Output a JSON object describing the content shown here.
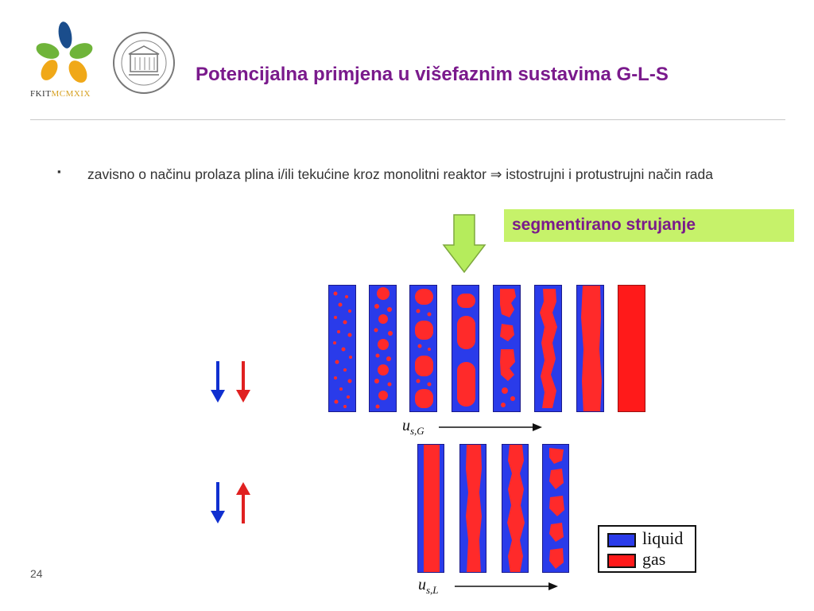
{
  "header": {
    "title": "Potencijalna primjena u višefaznim sustavima G-L-S",
    "logo_text": "FKIT",
    "logo_roman": "MCMXIX"
  },
  "bullet": {
    "marker": "▪",
    "text": "zavisno o načinu prolaza plina i/ili tekućine kroz monolitni reaktor ⇒ istostrujni i protustrujni način rada"
  },
  "highlight": {
    "label": "segmentirano strujanje",
    "background": "#c6f26a",
    "text_color": "#7a1a8c"
  },
  "figure": {
    "top_axis": {
      "symbol": "u",
      "subscript": "s,G"
    },
    "bottom_axis": {
      "symbol": "u",
      "subscript": "s,L"
    },
    "legend": [
      {
        "label": "liquid",
        "color": "#2a3bea"
      },
      {
        "label": "gas",
        "color": "#ff1a1a"
      }
    ],
    "arrow_colors": {
      "down_blue": "#1030d0",
      "red": "#e02020",
      "highlight_arrow": "#b5ec5c"
    }
  },
  "footer": {
    "page_number": "24"
  }
}
